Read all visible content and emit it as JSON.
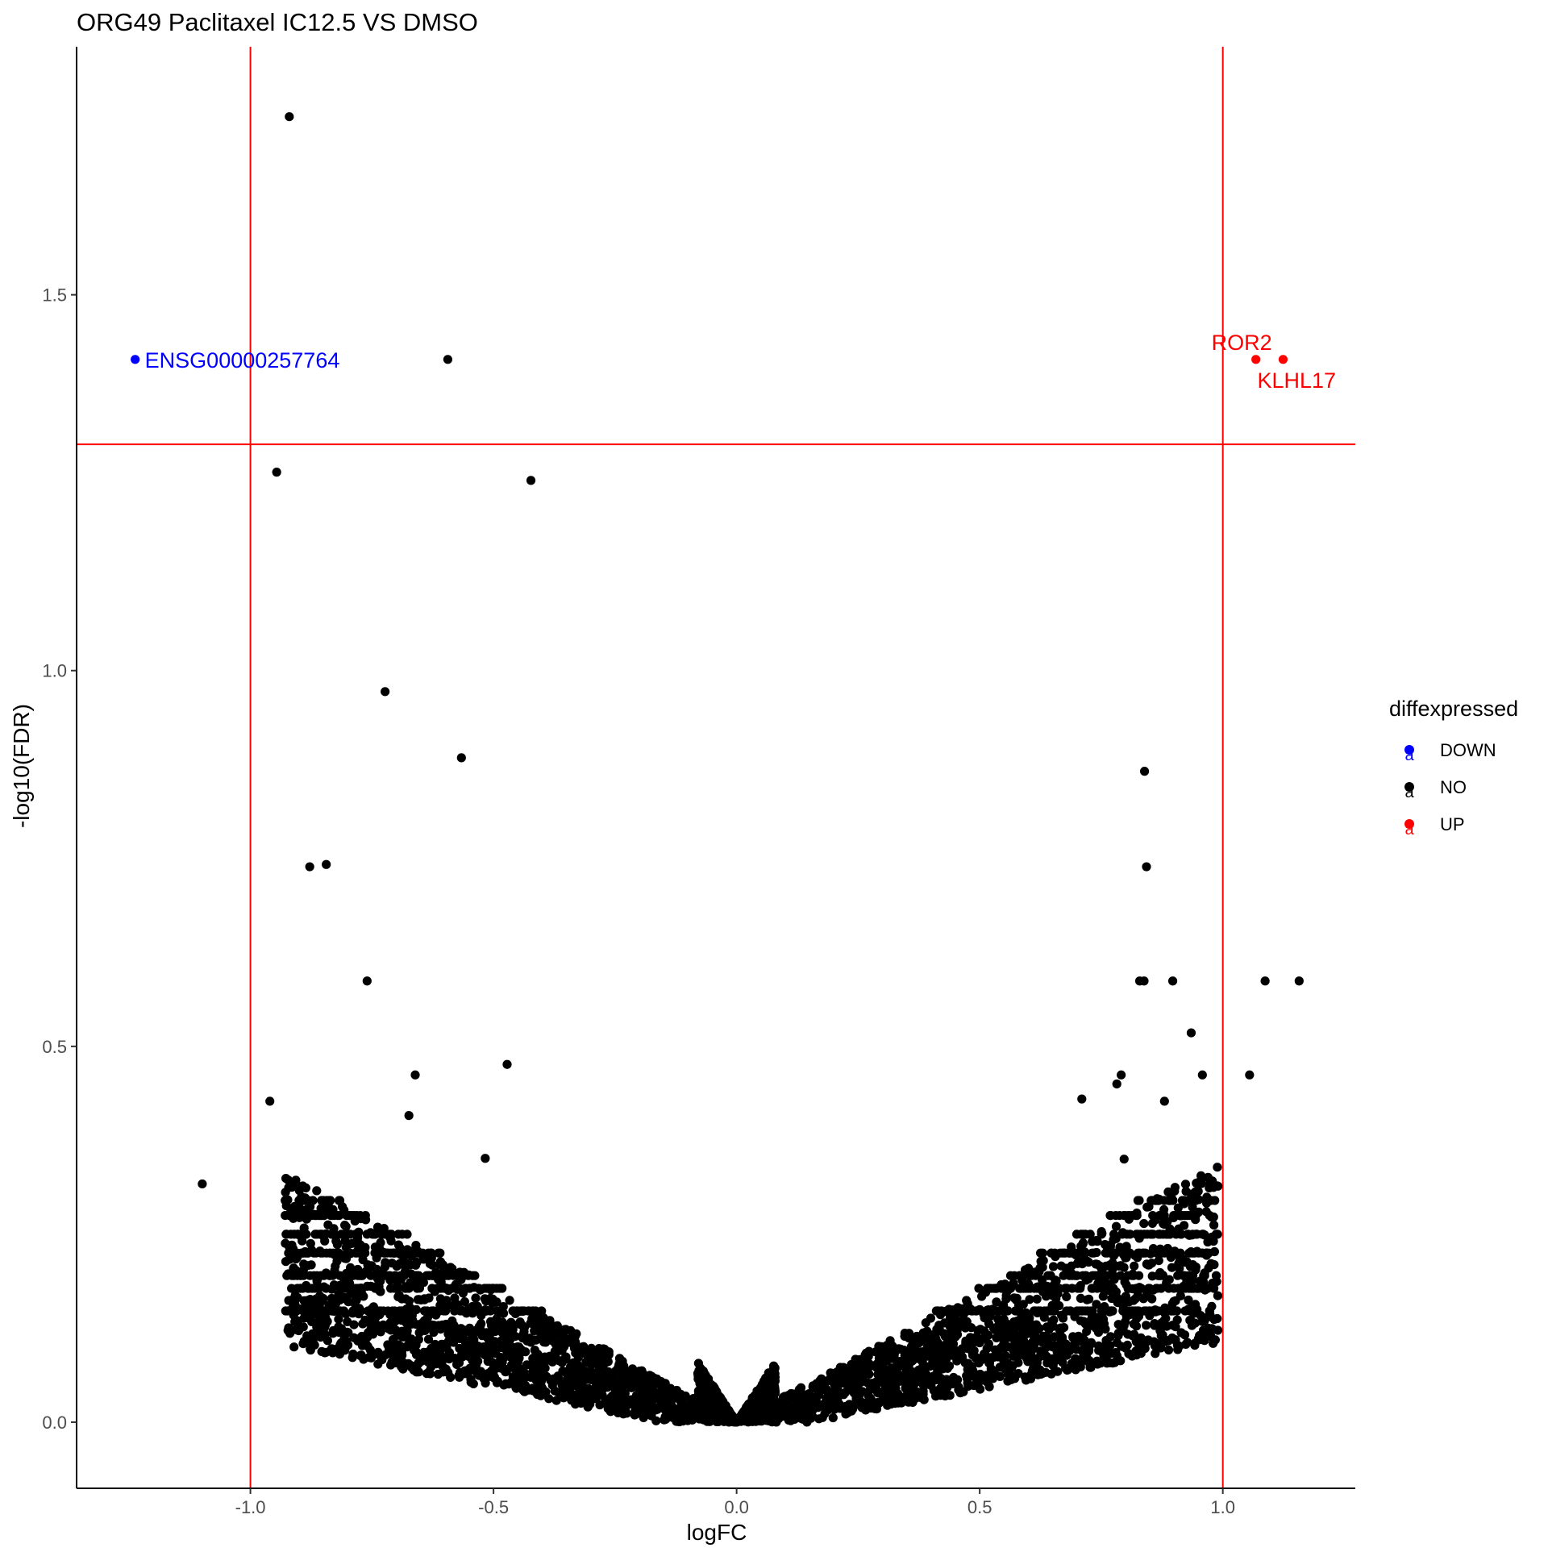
{
  "chart_data": {
    "type": "scatter",
    "title": "ORG49 Paclitaxel IC12.5 VS DMSO",
    "xlabel": "logFC",
    "ylabel": "-log10(FDR)",
    "xlim": [
      -1.3575,
      1.2725
    ],
    "ylim": [
      -0.088,
      1.83
    ],
    "x_ticks": [
      -1.0,
      -0.5,
      0.0,
      0.5,
      1.0
    ],
    "x_tick_labels": [
      "-1.0",
      "-0.5",
      "0.0",
      "0.5",
      "1.0"
    ],
    "y_ticks": [
      0.0,
      0.5,
      1.0,
      1.5
    ],
    "y_tick_labels": [
      "0.0",
      "0.5",
      "1.0",
      "1.5"
    ],
    "grid": false,
    "threshold_lines": {
      "vertical_x": [
        -1.0,
        1.0
      ],
      "horizontal_y": 1.301,
      "color": "#ff0000"
    },
    "legend": {
      "title": "diffexpressed",
      "placement": "right",
      "key_glyph": "a",
      "entries": [
        {
          "label": "DOWN",
          "color": "#0000ff"
        },
        {
          "label": "NO",
          "color": "#000000"
        },
        {
          "label": "UP",
          "color": "#ff0000"
        }
      ]
    },
    "series": [
      {
        "name": "DOWN",
        "color": "#0000ff",
        "points": [
          {
            "x": -1.237,
            "y": 1.414,
            "label": "ENSG00000257764"
          }
        ]
      },
      {
        "name": "UP",
        "color": "#ff0000",
        "points": [
          {
            "x": 1.068,
            "y": 1.414,
            "label": "ROR2"
          },
          {
            "x": 1.124,
            "y": 1.414,
            "label": "KLHL17"
          }
        ]
      },
      {
        "name": "NO",
        "color": "#000000",
        "points": [
          {
            "x": -0.92,
            "y": 1.737
          },
          {
            "x": -0.594,
            "y": 1.414
          },
          {
            "x": -0.946,
            "y": 1.264
          },
          {
            "x": -0.423,
            "y": 1.253
          },
          {
            "x": -0.723,
            "y": 0.972
          },
          {
            "x": -0.566,
            "y": 0.884
          },
          {
            "x": 0.839,
            "y": 0.866
          },
          {
            "x": -0.878,
            "y": 0.739
          },
          {
            "x": -0.844,
            "y": 0.742
          },
          {
            "x": 0.843,
            "y": 0.739
          },
          {
            "x": -0.76,
            "y": 0.587
          },
          {
            "x": 0.829,
            "y": 0.587
          },
          {
            "x": 0.838,
            "y": 0.587
          },
          {
            "x": 0.897,
            "y": 0.587
          },
          {
            "x": 1.087,
            "y": 0.587
          },
          {
            "x": 1.157,
            "y": 0.587
          },
          {
            "x": 0.935,
            "y": 0.518
          },
          {
            "x": -0.472,
            "y": 0.476
          },
          {
            "x": -0.661,
            "y": 0.462
          },
          {
            "x": 0.958,
            "y": 0.462
          },
          {
            "x": 1.055,
            "y": 0.462
          },
          {
            "x": 0.791,
            "y": 0.462
          },
          {
            "x": 0.782,
            "y": 0.45
          },
          {
            "x": -0.96,
            "y": 0.427
          },
          {
            "x": 0.71,
            "y": 0.43
          },
          {
            "x": 0.88,
            "y": 0.427
          },
          {
            "x": -0.674,
            "y": 0.408
          },
          {
            "x": -1.099,
            "y": 0.317
          },
          {
            "x": 0.797,
            "y": 0.35
          },
          {
            "x": -0.517,
            "y": 0.351
          },
          {
            "x": 0.99,
            "y": 0.314
          }
        ]
      }
    ],
    "dense_cloud": {
      "series": "NO",
      "description_free_bounds": {
        "left_arm": {
          "x_from": -0.93,
          "x_to": 0.0,
          "y_max_at_edge": 0.32
        },
        "right_arm": {
          "x_from": 0.0,
          "x_to": 0.99,
          "y_max_at_edge": 0.33
        },
        "bands_y": [
          0.148,
          0.178,
          0.195,
          0.225,
          0.25,
          0.275,
          0.295
        ]
      }
    }
  }
}
